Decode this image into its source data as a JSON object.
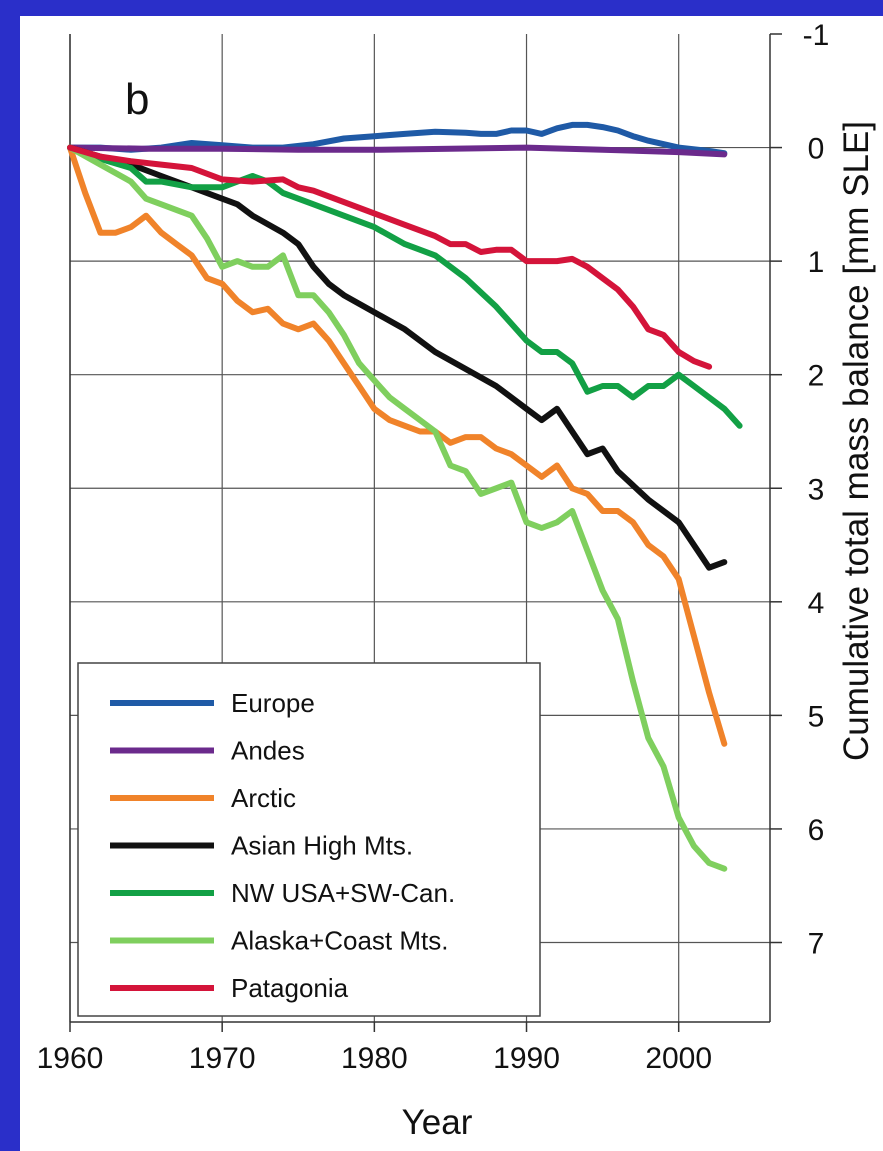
{
  "chart_data": {
    "type": "line",
    "panel_label": "b",
    "xlabel": "Year",
    "ylabel": "Cumulative total mass balance [mm SLE]",
    "xlim": [
      1960,
      2006
    ],
    "ylim": [
      -1,
      7.7
    ],
    "y_axis_inverted": true,
    "x_ticks": [
      1960,
      1970,
      1980,
      1990,
      2000
    ],
    "y_ticks": [
      -1,
      0,
      1,
      2,
      3,
      4,
      5,
      6,
      7
    ],
    "grid": true,
    "legend_position": "bottom-left",
    "series": [
      {
        "name": "Europe",
        "color": "#1f5aa6",
        "x": [
          1960,
          1962,
          1964,
          1966,
          1968,
          1970,
          1972,
          1974,
          1976,
          1978,
          1980,
          1982,
          1984,
          1986,
          1987,
          1988,
          1989,
          1990,
          1991,
          1992,
          1993,
          1994,
          1995,
          1996,
          1997,
          1998,
          2000,
          2002,
          2003
        ],
        "y": [
          0,
          0,
          0.02,
          0,
          -0.04,
          -0.02,
          0,
          0,
          -0.03,
          -0.08,
          -0.1,
          -0.12,
          -0.14,
          -0.13,
          -0.12,
          -0.12,
          -0.15,
          -0.15,
          -0.12,
          -0.17,
          -0.2,
          -0.2,
          -0.18,
          -0.15,
          -0.1,
          -0.06,
          0,
          0.03,
          0.05
        ]
      },
      {
        "name": "Andes",
        "color": "#6b2a8c",
        "x": [
          1960,
          1965,
          1970,
          1975,
          1980,
          1985,
          1990,
          1995,
          2000,
          2003
        ],
        "y": [
          0,
          0.01,
          0.01,
          0.02,
          0.02,
          0.01,
          0,
          0.02,
          0.04,
          0.06
        ]
      },
      {
        "name": "Arctic",
        "color": "#f0832a",
        "x": [
          1960,
          1961,
          1962,
          1963,
          1964,
          1965,
          1966,
          1967,
          1968,
          1969,
          1970,
          1971,
          1972,
          1973,
          1974,
          1975,
          1976,
          1977,
          1978,
          1979,
          1980,
          1981,
          1982,
          1983,
          1984,
          1985,
          1986,
          1987,
          1988,
          1989,
          1990,
          1991,
          1992,
          1993,
          1994,
          1995,
          1996,
          1997,
          1998,
          1999,
          2000,
          2001,
          2002,
          2003
        ],
        "y": [
          0,
          0.4,
          0.75,
          0.75,
          0.7,
          0.6,
          0.75,
          0.85,
          0.95,
          1.15,
          1.2,
          1.35,
          1.45,
          1.42,
          1.55,
          1.6,
          1.55,
          1.7,
          1.9,
          2.1,
          2.3,
          2.4,
          2.45,
          2.5,
          2.5,
          2.6,
          2.55,
          2.55,
          2.65,
          2.7,
          2.8,
          2.9,
          2.8,
          3.0,
          3.05,
          3.2,
          3.2,
          3.3,
          3.5,
          3.6,
          3.8,
          4.3,
          4.8,
          5.25
        ]
      },
      {
        "name": "Asian High Mts.",
        "color": "#111111",
        "x": [
          1960,
          1962,
          1964,
          1966,
          1968,
          1970,
          1971,
          1972,
          1974,
          1975,
          1976,
          1977,
          1978,
          1980,
          1982,
          1984,
          1986,
          1988,
          1990,
          1991,
          1992,
          1994,
          1995,
          1996,
          1998,
          2000,
          2002,
          2003
        ],
        "y": [
          0,
          0.08,
          0.15,
          0.25,
          0.35,
          0.45,
          0.5,
          0.6,
          0.75,
          0.85,
          1.05,
          1.2,
          1.3,
          1.45,
          1.6,
          1.8,
          1.95,
          2.1,
          2.3,
          2.4,
          2.3,
          2.7,
          2.65,
          2.85,
          3.1,
          3.3,
          3.7,
          3.65
        ]
      },
      {
        "name": "NW USA+SW-Can.",
        "color": "#12a045",
        "x": [
          1960,
          1962,
          1964,
          1965,
          1966,
          1968,
          1970,
          1971,
          1972,
          1973,
          1974,
          1976,
          1978,
          1980,
          1982,
          1984,
          1986,
          1988,
          1990,
          1991,
          1992,
          1993,
          1994,
          1995,
          1996,
          1997,
          1998,
          1999,
          2000,
          2001,
          2002,
          2003,
          2004
        ],
        "y": [
          0,
          0.1,
          0.18,
          0.3,
          0.3,
          0.35,
          0.35,
          0.3,
          0.25,
          0.3,
          0.4,
          0.5,
          0.6,
          0.7,
          0.85,
          0.95,
          1.15,
          1.4,
          1.7,
          1.8,
          1.8,
          1.9,
          2.15,
          2.1,
          2.1,
          2.2,
          2.1,
          2.1,
          2.0,
          2.1,
          2.2,
          2.3,
          2.45
        ]
      },
      {
        "name": "Alaska+Coast Mts.",
        "color": "#7fcf5e",
        "x": [
          1960,
          1962,
          1964,
          1965,
          1966,
          1968,
          1969,
          1970,
          1971,
          1972,
          1973,
          1974,
          1975,
          1976,
          1977,
          1978,
          1979,
          1980,
          1981,
          1982,
          1983,
          1984,
          1985,
          1986,
          1987,
          1988,
          1989,
          1990,
          1991,
          1992,
          1993,
          1994,
          1995,
          1996,
          1997,
          1998,
          1999,
          2000,
          2001,
          2002,
          2003
        ],
        "y": [
          0,
          0.15,
          0.3,
          0.45,
          0.5,
          0.6,
          0.8,
          1.05,
          1.0,
          1.05,
          1.05,
          0.95,
          1.3,
          1.3,
          1.45,
          1.65,
          1.9,
          2.05,
          2.2,
          2.3,
          2.4,
          2.5,
          2.8,
          2.85,
          3.05,
          3.0,
          2.95,
          3.3,
          3.35,
          3.3,
          3.2,
          3.55,
          3.9,
          4.15,
          4.7,
          5.2,
          5.45,
          5.9,
          6.15,
          6.3,
          6.35
        ]
      },
      {
        "name": "Patagonia",
        "color": "#d4143a",
        "x": [
          1960,
          1962,
          1964,
          1966,
          1968,
          1970,
          1972,
          1974,
          1975,
          1976,
          1978,
          1980,
          1982,
          1984,
          1985,
          1986,
          1987,
          1988,
          1989,
          1990,
          1991,
          1992,
          1993,
          1994,
          1995,
          1996,
          1997,
          1998,
          1999,
          2000,
          2001,
          2002
        ],
        "y": [
          0,
          0.08,
          0.12,
          0.15,
          0.18,
          0.28,
          0.3,
          0.28,
          0.35,
          0.38,
          0.48,
          0.58,
          0.68,
          0.78,
          0.85,
          0.85,
          0.92,
          0.9,
          0.9,
          1.0,
          1.0,
          1.0,
          0.98,
          1.05,
          1.15,
          1.25,
          1.4,
          1.6,
          1.65,
          1.8,
          1.88,
          1.93
        ]
      }
    ]
  }
}
